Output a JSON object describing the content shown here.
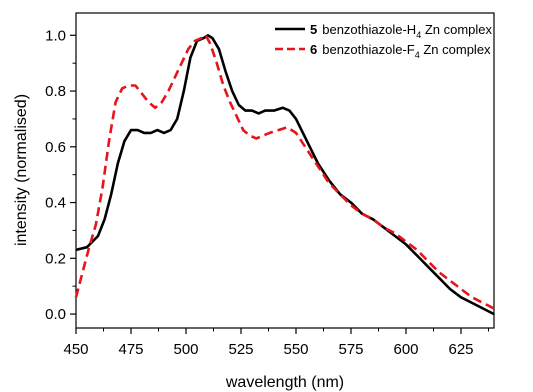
{
  "chart_data": {
    "type": "line",
    "xlabel": "wavelength (nm)",
    "ylabel": "intensity (normalised)",
    "xlim": [
      450,
      640
    ],
    "ylim": [
      -0.05,
      1.08
    ],
    "xticks": [
      450,
      475,
      500,
      525,
      550,
      575,
      600,
      625
    ],
    "yticks": [
      0.0,
      0.2,
      0.4,
      0.6,
      0.8,
      1.0
    ],
    "ytick_labels": [
      "0.0",
      "0.2",
      "0.4",
      "0.6",
      "0.8",
      "1.0"
    ],
    "legend_position": "top-right",
    "series": [
      {
        "number": "5",
        "name": "benzothiazole-H4 Zn complex",
        "legend_prefix": "benzothiazole-H",
        "legend_sub": "4",
        "legend_suffix": " Zn complex",
        "color": "#000000",
        "style": "solid",
        "points": [
          [
            450,
            0.23
          ],
          [
            455,
            0.24
          ],
          [
            460,
            0.28
          ],
          [
            463,
            0.34
          ],
          [
            466,
            0.43
          ],
          [
            469,
            0.54
          ],
          [
            472,
            0.62
          ],
          [
            475,
            0.66
          ],
          [
            478,
            0.66
          ],
          [
            481,
            0.65
          ],
          [
            484,
            0.65
          ],
          [
            487,
            0.66
          ],
          [
            490,
            0.65
          ],
          [
            493,
            0.66
          ],
          [
            496,
            0.7
          ],
          [
            499,
            0.8
          ],
          [
            502,
            0.92
          ],
          [
            505,
            0.98
          ],
          [
            508,
            0.99
          ],
          [
            510,
            1.0
          ],
          [
            512,
            0.99
          ],
          [
            515,
            0.95
          ],
          [
            518,
            0.87
          ],
          [
            521,
            0.8
          ],
          [
            524,
            0.75
          ],
          [
            527,
            0.73
          ],
          [
            530,
            0.73
          ],
          [
            533,
            0.72
          ],
          [
            536,
            0.73
          ],
          [
            540,
            0.73
          ],
          [
            544,
            0.74
          ],
          [
            547,
            0.73
          ],
          [
            550,
            0.7
          ],
          [
            555,
            0.62
          ],
          [
            560,
            0.54
          ],
          [
            565,
            0.48
          ],
          [
            570,
            0.43
          ],
          [
            575,
            0.4
          ],
          [
            580,
            0.36
          ],
          [
            585,
            0.34
          ],
          [
            590,
            0.31
          ],
          [
            595,
            0.28
          ],
          [
            600,
            0.25
          ],
          [
            605,
            0.21
          ],
          [
            610,
            0.17
          ],
          [
            615,
            0.13
          ],
          [
            620,
            0.09
          ],
          [
            625,
            0.06
          ],
          [
            630,
            0.04
          ],
          [
            635,
            0.02
          ],
          [
            640,
            0.0
          ]
        ]
      },
      {
        "number": "6",
        "name": "benzothiazole-F4 Zn complex",
        "legend_prefix": "benzothiazole-F",
        "legend_sub": "4",
        "legend_suffix": " Zn complex",
        "color": "#e8141c",
        "style": "dashed",
        "points": [
          [
            450,
            0.06
          ],
          [
            453,
            0.15
          ],
          [
            456,
            0.24
          ],
          [
            459,
            0.32
          ],
          [
            462,
            0.45
          ],
          [
            465,
            0.62
          ],
          [
            468,
            0.76
          ],
          [
            471,
            0.81
          ],
          [
            474,
            0.82
          ],
          [
            477,
            0.82
          ],
          [
            480,
            0.79
          ],
          [
            483,
            0.76
          ],
          [
            486,
            0.74
          ],
          [
            489,
            0.76
          ],
          [
            492,
            0.8
          ],
          [
            495,
            0.85
          ],
          [
            498,
            0.9
          ],
          [
            501,
            0.95
          ],
          [
            504,
            0.98
          ],
          [
            507,
            0.99
          ],
          [
            509,
            1.0
          ],
          [
            511,
            0.97
          ],
          [
            514,
            0.9
          ],
          [
            517,
            0.82
          ],
          [
            520,
            0.76
          ],
          [
            523,
            0.71
          ],
          [
            526,
            0.66
          ],
          [
            529,
            0.64
          ],
          [
            532,
            0.63
          ],
          [
            535,
            0.64
          ],
          [
            538,
            0.65
          ],
          [
            542,
            0.66
          ],
          [
            546,
            0.67
          ],
          [
            550,
            0.65
          ],
          [
            555,
            0.59
          ],
          [
            560,
            0.53
          ],
          [
            565,
            0.47
          ],
          [
            570,
            0.43
          ],
          [
            575,
            0.39
          ],
          [
            580,
            0.36
          ],
          [
            585,
            0.34
          ],
          [
            590,
            0.31
          ],
          [
            595,
            0.29
          ],
          [
            600,
            0.26
          ],
          [
            605,
            0.23
          ],
          [
            610,
            0.19
          ],
          [
            615,
            0.15
          ],
          [
            620,
            0.12
          ],
          [
            625,
            0.09
          ],
          [
            630,
            0.06
          ],
          [
            635,
            0.04
          ],
          [
            640,
            0.02
          ]
        ]
      }
    ]
  }
}
